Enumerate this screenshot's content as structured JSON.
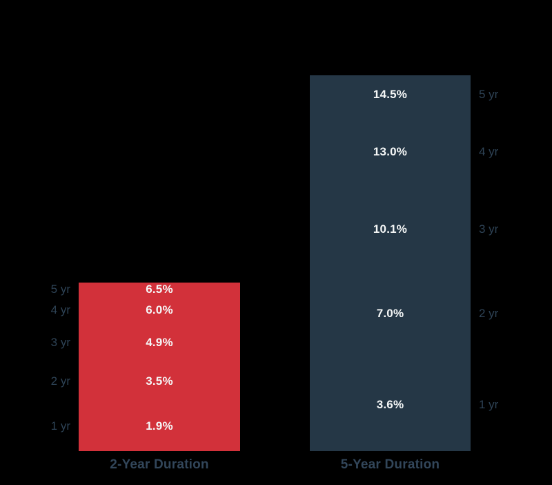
{
  "background_color": "#000000",
  "chart_data": {
    "type": "bar",
    "subtype": "stacked-cumulative",
    "orientation": "vertical",
    "grid": false,
    "legend": false,
    "axes_visible": false,
    "value_text_color": "#f5f7f7",
    "tick_text_color": "#2e4356",
    "category_text_color": "#32465a",
    "bars": [
      {
        "label": "2-Year Duration",
        "color": "#d2313a",
        "tick_side": "left",
        "years": [
          "1 yr",
          "2 yr",
          "3 yr",
          "4 yr",
          "5 yr"
        ],
        "cumulative_values": [
          1.9,
          3.5,
          4.9,
          6.0,
          6.5
        ],
        "value_labels": [
          "1.9%",
          "3.5%",
          "4.9%",
          "6.0%",
          "6.5%"
        ]
      },
      {
        "label": "5-Year Duration",
        "color": "#253746",
        "tick_side": "right",
        "years": [
          "1 yr",
          "2 yr",
          "3 yr",
          "4 yr",
          "5 yr"
        ],
        "cumulative_values": [
          3.6,
          7.0,
          10.1,
          13.0,
          14.5
        ],
        "value_labels": [
          "3.6%",
          "7.0%",
          "10.1%",
          "13.0%",
          "14.5%"
        ]
      }
    ]
  }
}
